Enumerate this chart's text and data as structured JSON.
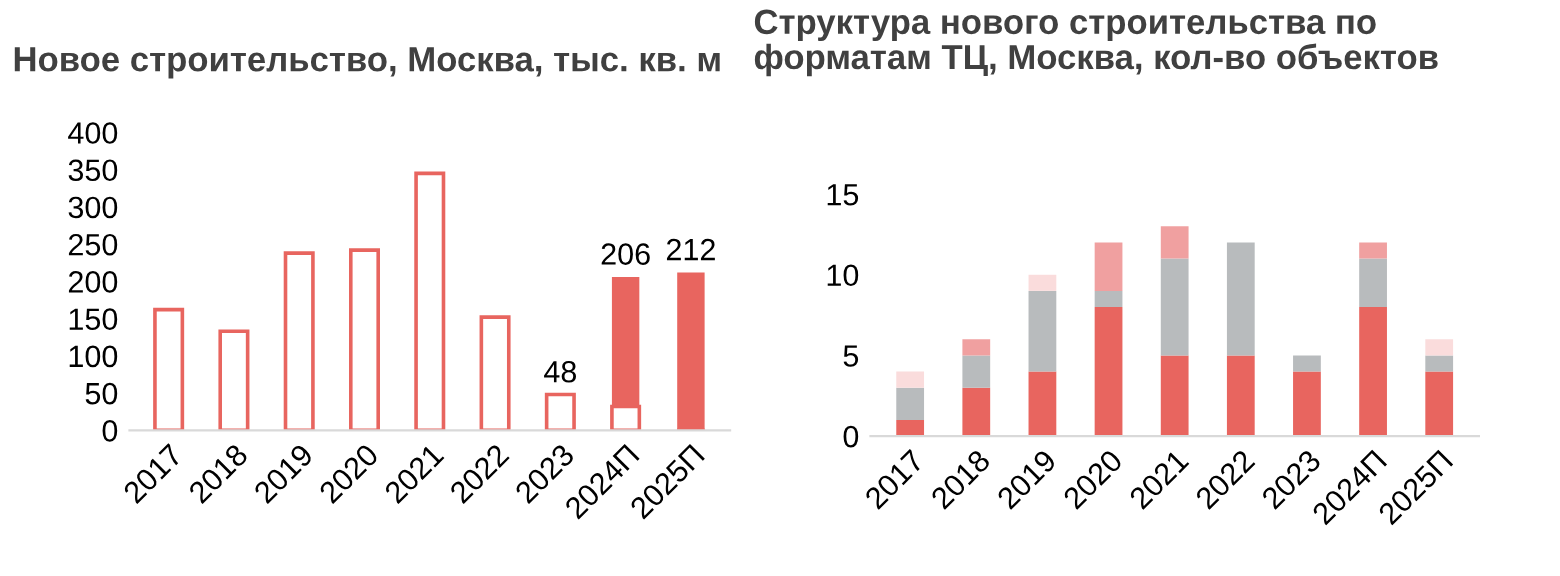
{
  "chart_data": [
    {
      "type": "bar",
      "title": "Новое строительство, Москва, тыс. кв. м",
      "stacked": true,
      "categories": [
        "2017",
        "2018",
        "2019",
        "2020",
        "2021",
        "2022",
        "2023",
        "2024П",
        "2025П"
      ],
      "series": [
        {
          "color": "#ffffff",
          "values": [
            162,
            133,
            238,
            242,
            345,
            152,
            48,
            32,
            0
          ]
        },
        {
          "color": "#e8655f",
          "values": [
            0,
            0,
            0,
            0,
            0,
            0,
            0,
            174,
            212
          ]
        }
      ],
      "totals": [
        null,
        null,
        null,
        null,
        null,
        null,
        "48",
        "206",
        "212"
      ],
      "ylim": [
        0,
        400
      ],
      "yticks": [
        0,
        50,
        100,
        150,
        200,
        250,
        300,
        350,
        400
      ]
    },
    {
      "type": "bar",
      "title": "Структура нового строительства по\nформатам ТЦ, Москва, кол-во объектов",
      "stacked": true,
      "categories": [
        "2017",
        "2018",
        "2019",
        "2020",
        "2021",
        "2022",
        "2023",
        "2024П",
        "2025П"
      ],
      "series": [
        {
          "color": "#e8655f",
          "values": [
            1,
            3,
            4,
            8,
            5,
            5,
            4,
            8,
            4
          ]
        },
        {
          "color": "#b8bbbd",
          "values": [
            2,
            2,
            5,
            1,
            6,
            7,
            1,
            3,
            1
          ]
        },
        {
          "color": "#f0a0a0",
          "values": [
            0,
            1,
            0,
            3,
            2,
            0,
            0,
            1,
            0
          ]
        },
        {
          "color": "#fadcdc",
          "values": [
            1,
            0,
            1,
            0,
            0,
            0,
            0,
            0,
            1
          ]
        }
      ],
      "ylim": [
        0,
        15
      ],
      "yticks": [
        0,
        5,
        10,
        15
      ]
    }
  ]
}
